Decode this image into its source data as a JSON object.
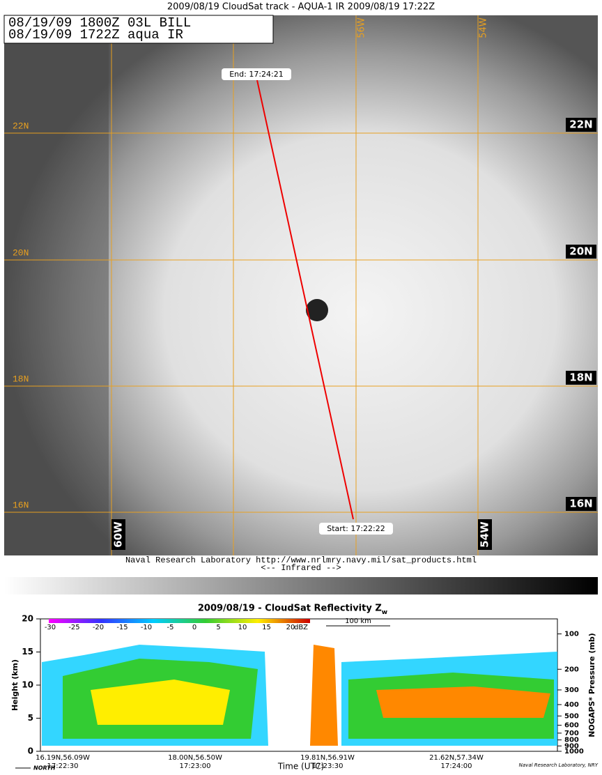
{
  "header": {
    "title": "2009/08/19 CloudSat track - AQUA-1 IR  2009/08/19 17:22Z"
  },
  "image": {
    "info_lines": [
      "08/19/09 1800Z  03L BILL",
      "08/19/09 1722Z  aqua IR"
    ],
    "lat_labels": [
      "22N",
      "20N",
      "18N",
      "16N"
    ],
    "lon_labels_top": [
      "56W",
      "54W"
    ],
    "lon_labels_bottom": [
      "60W",
      "54W"
    ],
    "track_end": "End: 17:24:21",
    "track_start": "Start: 17:22:22",
    "credit": "Naval Research Laboratory  http://www.nrlmry.navy.mil/sat_products.html",
    "band": "<--   Infrared   -->"
  },
  "profile": {
    "title": "2009/08/19 - CloudSat Reflectivity Z",
    "title_sub": "w",
    "y_label": "Height (km)",
    "y_ticks": [
      0,
      5,
      10,
      15,
      20
    ],
    "y2_label": "NOGAPS* Pressure (mb)",
    "y2_ticks": [
      100,
      200,
      300,
      400,
      500,
      600,
      700,
      800,
      900,
      1000
    ],
    "colorbar_ticks": [
      -30,
      -25,
      -20,
      -15,
      -10,
      -5,
      0,
      5,
      10,
      15,
      20
    ],
    "colorbar_unit": "dBZ",
    "scale": "100 km",
    "x_labels": [
      {
        "pos": "16.19N,56.09W",
        "time": "17:22:30"
      },
      {
        "pos": "18.00N,56.50W",
        "time": "17:23:00"
      },
      {
        "pos": "19.81N,56.91W",
        "time": "17:23:30"
      },
      {
        "pos": "21.62N,57.34W",
        "time": "17:24:00"
      }
    ],
    "x_title": "Time (UTC)",
    "direction": "NORTH",
    "credit": "Naval Research Laboratory, NRY"
  }
}
